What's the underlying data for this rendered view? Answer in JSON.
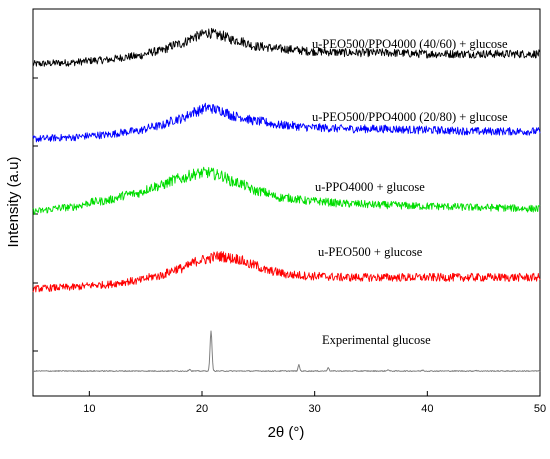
{
  "chart_data": {
    "type": "line",
    "xlabel": "2θ (°)",
    "ylabel": "Intensity (a.u)",
    "xlim": [
      5,
      50
    ],
    "x_ticks": [
      10,
      20,
      30,
      40,
      50
    ],
    "y_ticks_labeled": false,
    "grid": false,
    "legend": "none",
    "series": [
      {
        "name": "u-PEO500/PPO4000 (40/60) + glucose",
        "color": "#000000",
        "baseline": 0.93,
        "x": [
          5,
          8,
          11,
          14,
          16,
          18,
          19.5,
          20.5,
          21.5,
          23,
          25,
          27,
          30,
          33,
          36,
          40,
          45,
          50
        ],
        "y": [
          0.93,
          0.935,
          0.945,
          0.96,
          0.98,
          1.01,
          1.04,
          1.055,
          1.045,
          1.025,
          1.0,
          0.99,
          0.98,
          0.975,
          0.975,
          0.97,
          0.97,
          0.97
        ]
      },
      {
        "name": "u-PEO500/PPO4000 (20/80) + glucose",
        "color": "#0000ff",
        "baseline": 0.63,
        "x": [
          5,
          8,
          11,
          14,
          16,
          18,
          19.5,
          20.5,
          21.5,
          23,
          25,
          27,
          30,
          33,
          36,
          40,
          45,
          50
        ],
        "y": [
          0.63,
          0.635,
          0.645,
          0.66,
          0.68,
          0.71,
          0.74,
          0.755,
          0.745,
          0.72,
          0.7,
          0.685,
          0.675,
          0.67,
          0.67,
          0.665,
          0.66,
          0.66
        ]
      },
      {
        "name": "u-PPO4000 + glucose",
        "color": "#00dd00",
        "baseline": 0.34,
        "x": [
          5,
          8,
          11,
          14,
          16,
          18,
          19.5,
          20.5,
          21.5,
          23,
          25,
          27,
          30,
          33,
          36,
          40,
          45,
          50
        ],
        "y": [
          0.34,
          0.355,
          0.38,
          0.41,
          0.44,
          0.47,
          0.49,
          0.495,
          0.485,
          0.455,
          0.42,
          0.395,
          0.38,
          0.37,
          0.365,
          0.36,
          0.355,
          0.35
        ]
      },
      {
        "name": "u-PEO500 + glucose",
        "color": "#ff0000",
        "baseline": 0.03,
        "x": [
          5,
          8,
          11,
          14,
          16,
          18,
          20,
          21.5,
          23,
          24.5,
          26,
          28,
          30,
          33,
          36,
          40,
          45,
          50
        ],
        "y": [
          0.03,
          0.035,
          0.045,
          0.06,
          0.08,
          0.11,
          0.145,
          0.16,
          0.15,
          0.125,
          0.1,
          0.085,
          0.08,
          0.075,
          0.075,
          0.075,
          0.075,
          0.075
        ]
      },
      {
        "name": "Experimental glucose",
        "color": "#808080",
        "baseline": -0.3,
        "peaks": [
          {
            "x": 20.8,
            "height": 0.16
          },
          {
            "x": 28.6,
            "height": 0.025
          },
          {
            "x": 31.2,
            "height": 0.015
          },
          {
            "x": 18.9,
            "height": 0.008
          },
          {
            "x": 36.5,
            "height": 0.006
          },
          {
            "x": 39.6,
            "height": 0.004
          },
          {
            "x": 44.3,
            "height": 0.003
          }
        ]
      }
    ]
  }
}
